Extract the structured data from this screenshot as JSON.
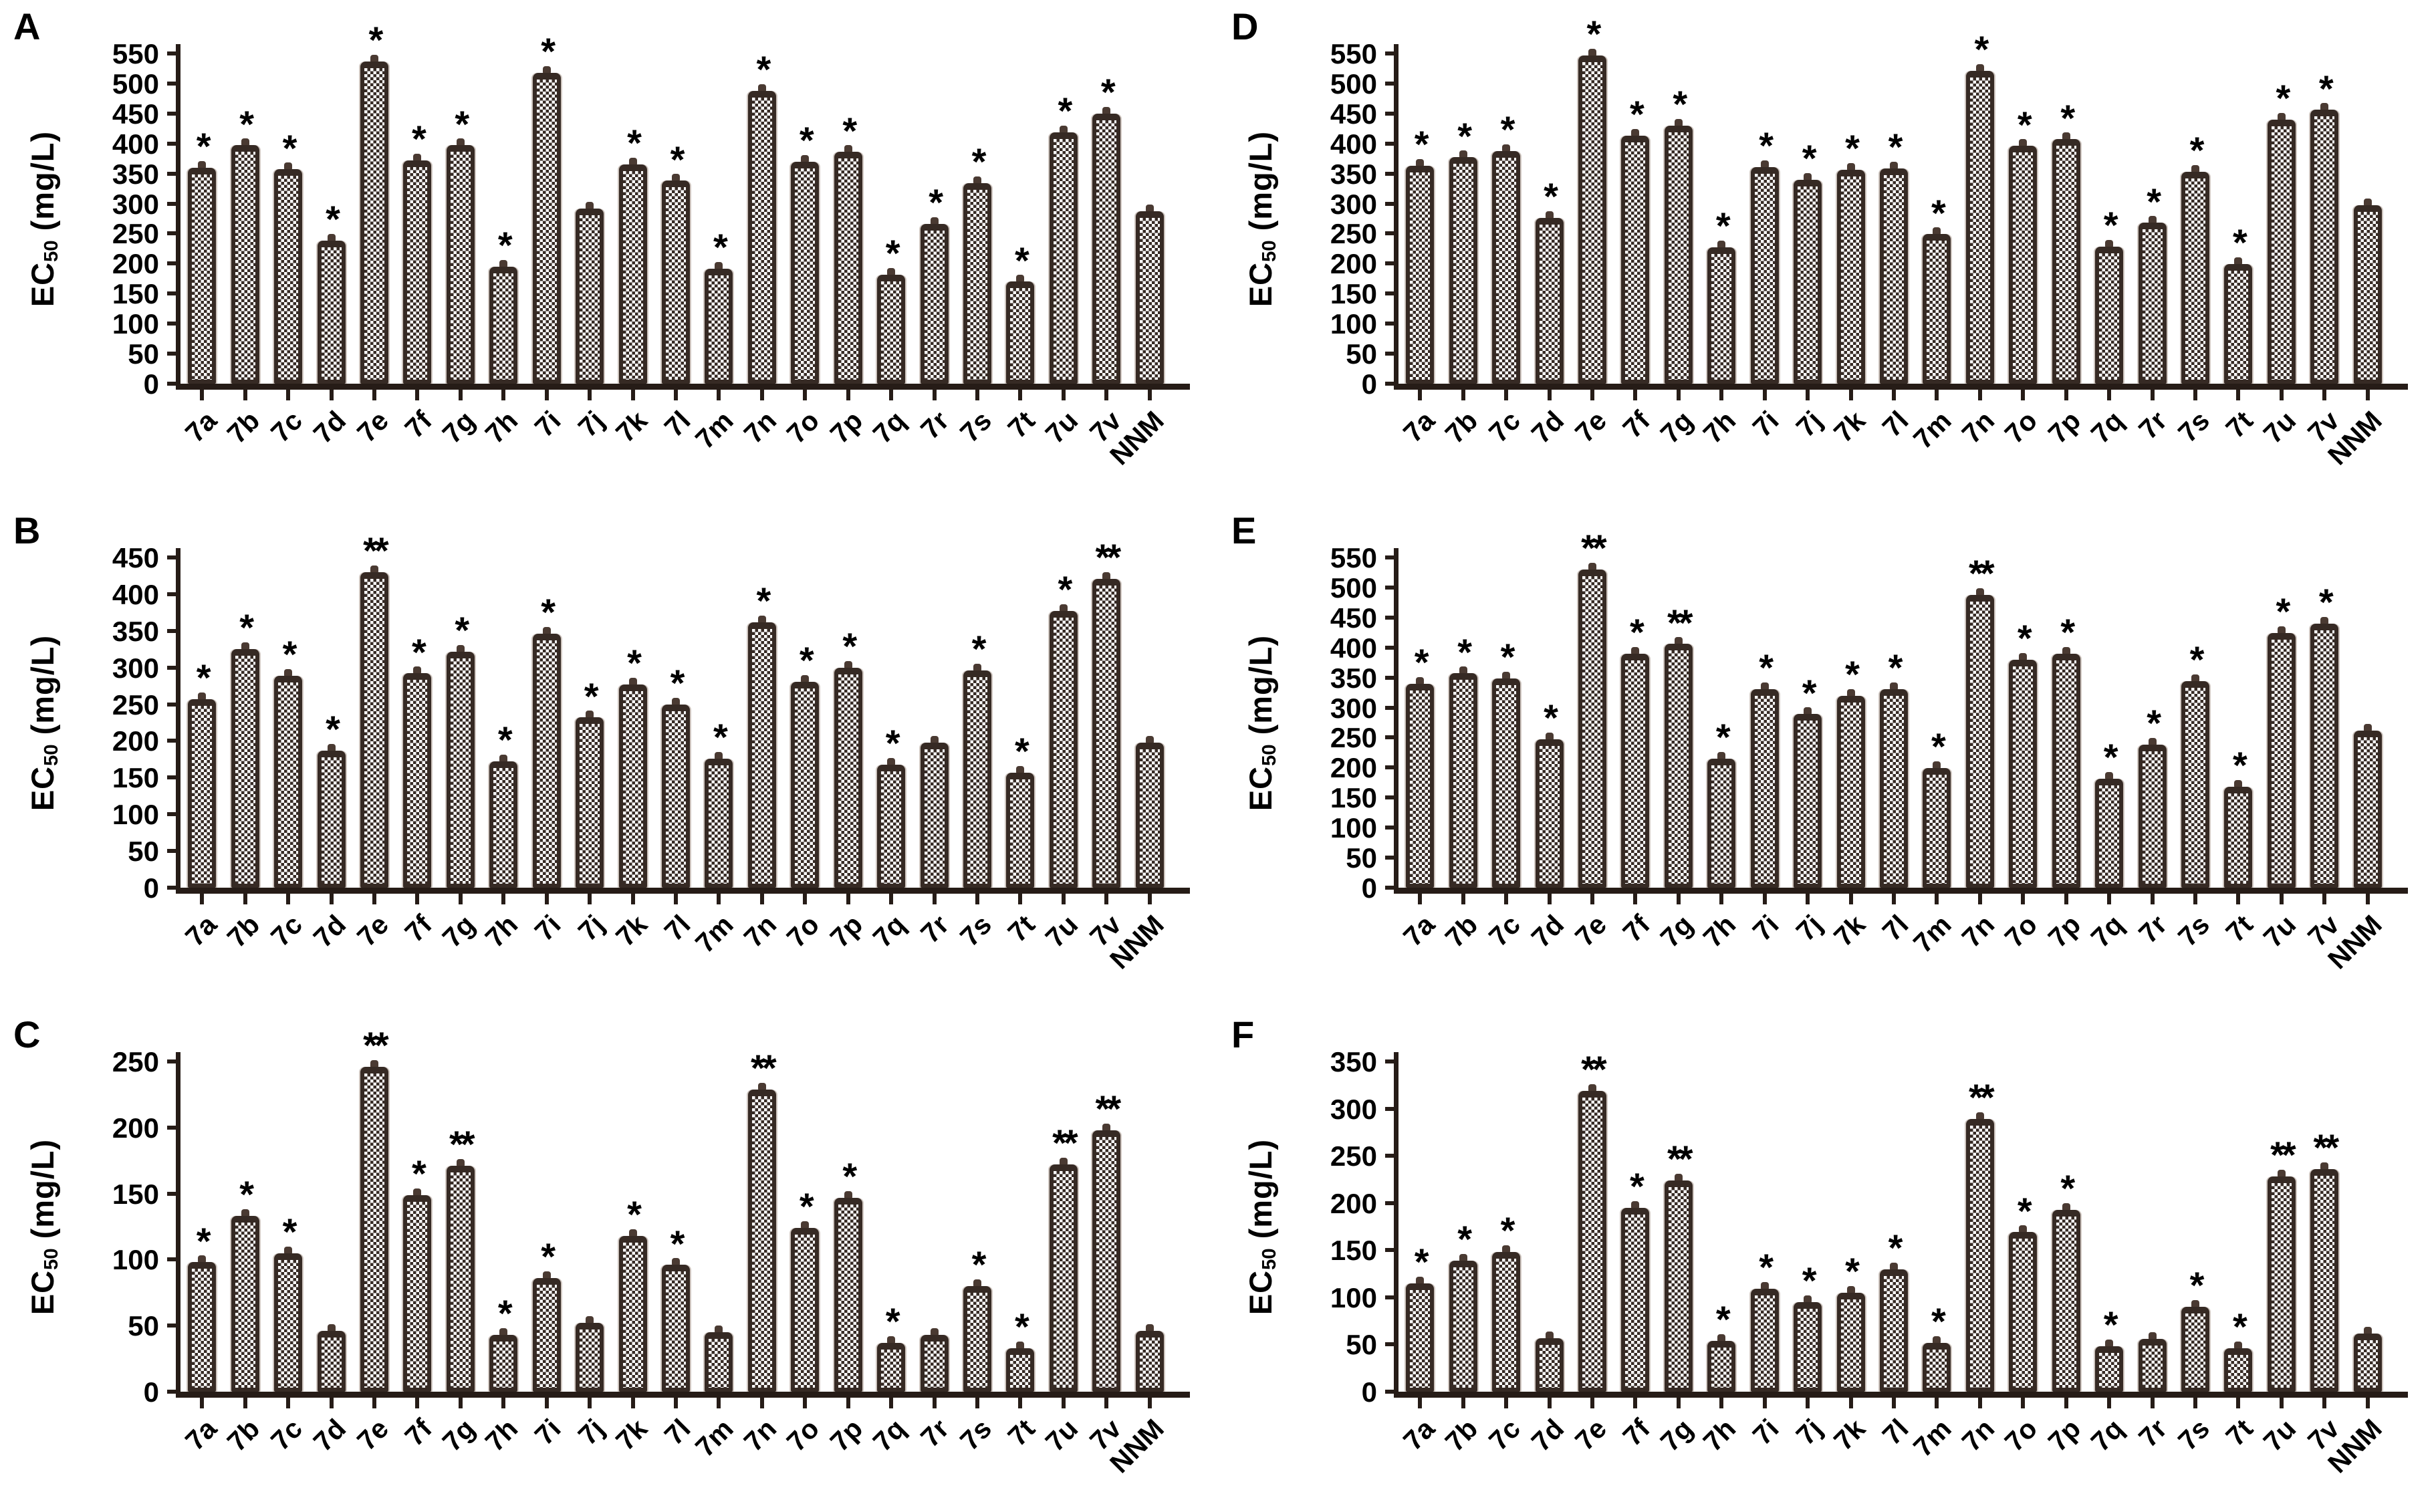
{
  "colors": {
    "bar_dark": "#362a24",
    "bar_light": "#ffffff",
    "axis": "#261c17",
    "text": "#1c130f",
    "error_cap": "#4a3a32",
    "bar_shadow": "#cfc6c0"
  },
  "chart_data": [
    {
      "type": "bar",
      "panel": "A",
      "ylabel_prefix": "EC",
      "ylabel_sub": "50",
      "ylabel_suffix": " (mg/L)",
      "ylim": [
        0,
        550
      ],
      "ytick_step": 50,
      "grid": false,
      "xlabel": "",
      "yticks": [
        0,
        50,
        100,
        150,
        200,
        250,
        300,
        350,
        400,
        450,
        500,
        550
      ],
      "categories": [
        "7a",
        "7b",
        "7c",
        "7d",
        "7e",
        "7f",
        "7g",
        "7h",
        "7i",
        "7j",
        "7k",
        "7l",
        "7m",
        "7n",
        "7o",
        "7p",
        "7q",
        "7r",
        "7s",
        "7t",
        "7u",
        "7v",
        "NNM"
      ],
      "values": [
        360,
        397,
        357,
        238,
        537,
        372,
        397,
        195,
        518,
        292,
        365,
        338,
        192,
        488,
        370,
        386,
        182,
        266,
        334,
        170,
        419,
        450,
        287
      ],
      "sig": [
        "*",
        "*",
        "*",
        "*",
        "*",
        "*",
        "*",
        "*",
        "*",
        "",
        "*",
        "*",
        "*",
        "*",
        "*",
        "*",
        "*",
        "*",
        "*",
        "*",
        "*",
        "*",
        ""
      ]
    },
    {
      "type": "bar",
      "panel": "B",
      "ylabel_prefix": "EC",
      "ylabel_sub": "50",
      "ylabel_suffix": " (mg/L)",
      "ylim": [
        0,
        450
      ],
      "ytick_step": 50,
      "grid": false,
      "xlabel": "",
      "yticks": [
        0,
        50,
        100,
        150,
        200,
        250,
        300,
        350,
        400,
        450
      ],
      "categories": [
        "7a",
        "7b",
        "7c",
        "7d",
        "7e",
        "7f",
        "7g",
        "7h",
        "7i",
        "7j",
        "7k",
        "7l",
        "7m",
        "7n",
        "7o",
        "7p",
        "7q",
        "7r",
        "7s",
        "7t",
        "7u",
        "7v",
        "NNM"
      ],
      "values": [
        257,
        325,
        289,
        187,
        430,
        292,
        322,
        172,
        346,
        232,
        277,
        250,
        176,
        362,
        281,
        300,
        168,
        198,
        296,
        157,
        377,
        421,
        198
      ],
      "sig": [
        "*",
        "*",
        "*",
        "*",
        "**",
        "*",
        "*",
        "*",
        "*",
        "*",
        "*",
        "*",
        "*",
        "*",
        "*",
        "*",
        "*",
        "",
        "*",
        "*",
        "*",
        "**",
        ""
      ]
    },
    {
      "type": "bar",
      "panel": "C",
      "ylabel_prefix": "EC",
      "ylabel_sub": "50",
      "ylabel_suffix": " (mg/L)",
      "ylim": [
        0,
        250
      ],
      "ytick_step": 50,
      "grid": false,
      "xlabel": "",
      "yticks": [
        0,
        50,
        100,
        150,
        200,
        250
      ],
      "categories": [
        "7a",
        "7b",
        "7c",
        "7d",
        "7e",
        "7f",
        "7g",
        "7h",
        "7i",
        "7j",
        "7k",
        "7l",
        "7m",
        "7n",
        "7o",
        "7p",
        "7q",
        "7r",
        "7s",
        "7t",
        "7u",
        "7v",
        "NNM"
      ],
      "values": [
        98,
        133,
        105,
        46,
        246,
        149,
        171,
        43,
        86,
        52,
        118,
        96,
        45,
        229,
        124,
        147,
        37,
        43,
        80,
        33,
        172,
        198,
        46
      ],
      "sig": [
        "*",
        "*",
        "*",
        "",
        "**",
        "*",
        "**",
        "*",
        "*",
        "",
        "*",
        "*",
        "",
        "**",
        "*",
        "*",
        "*",
        "",
        "*",
        "*",
        "**",
        "**",
        ""
      ]
    },
    {
      "type": "bar",
      "panel": "D",
      "ylabel_prefix": "EC",
      "ylabel_sub": "50",
      "ylabel_suffix": " (mg/L)",
      "ylim": [
        0,
        550
      ],
      "ytick_step": 50,
      "grid": false,
      "xlabel": "",
      "yticks": [
        0,
        50,
        100,
        150,
        200,
        250,
        300,
        350,
        400,
        450,
        500,
        550
      ],
      "categories": [
        "7a",
        "7b",
        "7c",
        "7d",
        "7e",
        "7f",
        "7g",
        "7h",
        "7i",
        "7j",
        "7k",
        "7l",
        "7m",
        "7n",
        "7o",
        "7p",
        "7q",
        "7r",
        "7s",
        "7t",
        "7u",
        "7v",
        "NNM"
      ],
      "values": [
        363,
        377,
        388,
        276,
        547,
        413,
        430,
        227,
        361,
        340,
        356,
        359,
        249,
        521,
        396,
        407,
        228,
        268,
        353,
        199,
        440,
        456,
        297
      ],
      "sig": [
        "*",
        "*",
        "*",
        "*",
        "*",
        "*",
        "*",
        "*",
        "*",
        "*",
        "*",
        "*",
        "*",
        "*",
        "*",
        "*",
        "*",
        "*",
        "*",
        "*",
        "*",
        "*",
        ""
      ]
    },
    {
      "type": "bar",
      "panel": "E",
      "ylabel_prefix": "EC",
      "ylabel_sub": "50",
      "ylabel_suffix": " (mg/L)",
      "ylim": [
        0,
        550
      ],
      "ytick_step": 50,
      "grid": false,
      "xlabel": "",
      "yticks": [
        0,
        50,
        100,
        150,
        200,
        250,
        300,
        350,
        400,
        450,
        500,
        550
      ],
      "categories": [
        "7a",
        "7b",
        "7c",
        "7d",
        "7e",
        "7f",
        "7g",
        "7h",
        "7i",
        "7j",
        "7k",
        "7l",
        "7m",
        "7n",
        "7o",
        "7p",
        "7q",
        "7r",
        "7s",
        "7t",
        "7u",
        "7v",
        "NNM"
      ],
      "values": [
        340,
        357,
        349,
        247,
        530,
        390,
        406,
        215,
        331,
        289,
        320,
        331,
        199,
        488,
        380,
        390,
        182,
        238,
        344,
        168,
        424,
        440,
        262
      ],
      "sig": [
        "*",
        "*",
        "*",
        "*",
        "**",
        "*",
        "**",
        "*",
        "*",
        "*",
        "*",
        "*",
        "*",
        "**",
        "*",
        "*",
        "*",
        "*",
        "*",
        "*",
        "*",
        "*",
        ""
      ]
    },
    {
      "type": "bar",
      "panel": "F",
      "ylabel_prefix": "EC",
      "ylabel_sub": "50",
      "ylabel_suffix": " (mg/L)",
      "ylim": [
        0,
        350
      ],
      "ytick_step": 50,
      "grid": false,
      "xlabel": "",
      "yticks": [
        0,
        50,
        100,
        150,
        200,
        250,
        300,
        350
      ],
      "categories": [
        "7a",
        "7b",
        "7c",
        "7d",
        "7e",
        "7f",
        "7g",
        "7h",
        "7i",
        "7j",
        "7k",
        "7l",
        "7m",
        "7n",
        "7o",
        "7p",
        "7q",
        "7r",
        "7s",
        "7t",
        "7u",
        "7v",
        "NNM"
      ],
      "values": [
        115,
        139,
        148,
        57,
        319,
        195,
        224,
        54,
        109,
        95,
        105,
        130,
        52,
        289,
        169,
        193,
        48,
        56,
        90,
        46,
        228,
        236,
        62
      ],
      "sig": [
        "*",
        "*",
        "*",
        "",
        "**",
        "*",
        "**",
        "*",
        "*",
        "*",
        "*",
        "*",
        "*",
        "**",
        "*",
        "*",
        "*",
        "",
        "*",
        "*",
        "**",
        "**",
        ""
      ]
    }
  ]
}
